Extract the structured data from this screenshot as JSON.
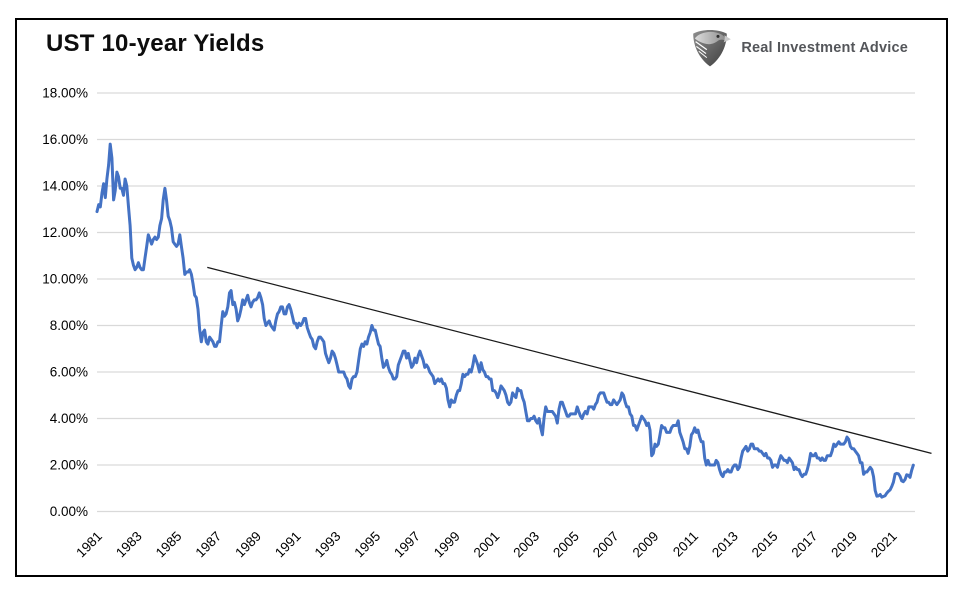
{
  "header": {
    "title": "UST 10-year Yields"
  },
  "logo": {
    "icon": "eagle-shield-icon",
    "text": "Real Investment Advice"
  },
  "chart_data": {
    "type": "line",
    "title": "UST 10-year Yields",
    "grid": "horizontal",
    "legend": "none",
    "line_color": "#4472C4",
    "grid_color": "#d9d9d9",
    "trendline_color": "#1a1a1a",
    "ylim": [
      0,
      18
    ],
    "ytick_values": [
      0,
      2,
      4,
      6,
      8,
      10,
      12,
      14,
      16,
      18
    ],
    "ytick_labels": [
      "0.00%",
      "2.00%",
      "4.00%",
      "6.00%",
      "8.00%",
      "10.00%",
      "12.00%",
      "14.00%",
      "16.00%",
      "18.00%"
    ],
    "xtick_labels": [
      "1981",
      "1983",
      "1985",
      "1987",
      "1989",
      "1991",
      "1993",
      "1995",
      "1997",
      "1999",
      "2001",
      "2003",
      "2005",
      "2007",
      "2009",
      "2011",
      "2013",
      "2015",
      "2017",
      "2019",
      "2021"
    ],
    "x_start_year": 1981,
    "x_end_year": 2022.17,
    "series": [
      {
        "name": "UST 10-year Yield (%)",
        "interval": "monthly",
        "start": "1981-01",
        "end": "2022-02",
        "values": [
          12.9,
          13.2,
          13.1,
          13.7,
          14.1,
          13.5,
          14.3,
          14.9,
          15.8,
          15.2,
          13.4,
          13.8,
          14.6,
          14.4,
          13.9,
          13.9,
          13.6,
          14.3,
          14.0,
          13.1,
          12.3,
          10.9,
          10.6,
          10.4,
          10.5,
          10.7,
          10.5,
          10.4,
          10.4,
          10.9,
          11.4,
          11.9,
          11.7,
          11.5,
          11.7,
          11.8,
          11.7,
          11.8,
          12.3,
          12.6,
          13.4,
          13.9,
          13.4,
          12.7,
          12.5,
          12.2,
          11.6,
          11.5,
          11.4,
          11.5,
          11.9,
          11.4,
          10.9,
          10.2,
          10.3,
          10.3,
          10.4,
          10.2,
          9.8,
          9.3,
          9.2,
          8.7,
          7.8,
          7.3,
          7.7,
          7.8,
          7.3,
          7.2,
          7.5,
          7.4,
          7.3,
          7.1,
          7.1,
          7.3,
          7.3,
          8.0,
          8.6,
          8.4,
          8.5,
          8.8,
          9.4,
          9.5,
          8.9,
          9.0,
          8.7,
          8.2,
          8.4,
          8.7,
          9.1,
          8.9,
          9.1,
          9.3,
          9.0,
          8.8,
          9.0,
          9.1,
          9.1,
          9.2,
          9.4,
          9.2,
          8.9,
          8.3,
          8.0,
          8.1,
          8.2,
          8.0,
          7.9,
          7.8,
          8.2,
          8.5,
          8.6,
          8.8,
          8.8,
          8.5,
          8.5,
          8.8,
          8.9,
          8.7,
          8.4,
          8.1,
          8.1,
          7.9,
          8.1,
          8.0,
          8.1,
          8.3,
          8.3,
          7.9,
          7.7,
          7.5,
          7.4,
          7.1,
          7.0,
          7.3,
          7.5,
          7.5,
          7.4,
          7.3,
          6.8,
          6.6,
          6.4,
          6.6,
          6.9,
          6.8,
          6.6,
          6.3,
          6.0,
          6.0,
          6.0,
          6.0,
          5.8,
          5.7,
          5.4,
          5.3,
          5.7,
          5.8,
          5.8,
          6.0,
          6.5,
          7.0,
          7.2,
          7.1,
          7.3,
          7.2,
          7.5,
          7.7,
          8.0,
          7.8,
          7.8,
          7.5,
          7.2,
          7.1,
          6.6,
          6.2,
          6.3,
          6.5,
          6.2,
          6.0,
          5.9,
          5.7,
          5.7,
          5.8,
          6.3,
          6.5,
          6.7,
          6.9,
          6.9,
          6.6,
          6.8,
          6.5,
          6.2,
          6.3,
          6.6,
          6.4,
          6.7,
          6.9,
          6.7,
          6.5,
          6.2,
          6.3,
          6.2,
          6.0,
          5.9,
          5.8,
          5.5,
          5.6,
          5.7,
          5.6,
          5.7,
          5.5,
          5.5,
          5.3,
          4.8,
          4.5,
          4.8,
          4.7,
          4.7,
          5.0,
          5.2,
          5.2,
          5.5,
          5.9,
          5.8,
          5.9,
          5.9,
          6.1,
          6.0,
          6.3,
          6.7,
          6.5,
          6.3,
          6.0,
          6.4,
          6.1,
          6.0,
          5.8,
          5.8,
          5.7,
          5.7,
          5.2,
          5.2,
          5.1,
          4.9,
          5.1,
          5.4,
          5.3,
          5.2,
          5.0,
          4.7,
          4.6,
          4.7,
          5.1,
          5.0,
          4.9,
          5.3,
          5.2,
          5.2,
          4.9,
          4.7,
          4.3,
          3.9,
          3.9,
          4.0,
          4.0,
          4.1,
          3.9,
          3.8,
          4.0,
          3.6,
          3.3,
          4.0,
          4.5,
          4.3,
          4.3,
          4.3,
          4.3,
          4.2,
          4.1,
          3.8,
          4.4,
          4.7,
          4.7,
          4.5,
          4.3,
          4.1,
          4.1,
          4.2,
          4.2,
          4.2,
          4.2,
          4.5,
          4.3,
          4.1,
          4.0,
          4.2,
          4.3,
          4.2,
          4.5,
          4.5,
          4.5,
          4.4,
          4.6,
          4.7,
          5.0,
          5.1,
          5.1,
          5.1,
          4.9,
          4.7,
          4.7,
          4.6,
          4.6,
          4.8,
          4.7,
          4.6,
          4.7,
          4.8,
          5.1,
          5.0,
          4.7,
          4.5,
          4.5,
          4.2,
          4.1,
          3.7,
          3.7,
          3.5,
          3.7,
          3.9,
          4.1,
          4.0,
          3.9,
          3.7,
          3.8,
          3.5,
          2.4,
          2.5,
          2.9,
          2.8,
          2.9,
          3.3,
          3.7,
          3.6,
          3.6,
          3.4,
          3.4,
          3.4,
          3.6,
          3.7,
          3.7,
          3.7,
          3.9,
          3.4,
          3.2,
          3.0,
          2.7,
          2.7,
          2.5,
          2.8,
          3.3,
          3.4,
          3.6,
          3.4,
          3.5,
          3.2,
          3.0,
          3.0,
          2.3,
          2.0,
          2.2,
          2.0,
          2.0,
          2.0,
          2.0,
          2.2,
          2.1,
          1.8,
          1.6,
          1.5,
          1.7,
          1.7,
          1.8,
          1.7,
          1.7,
          1.9,
          2.0,
          2.0,
          1.8,
          1.9,
          2.3,
          2.6,
          2.7,
          2.8,
          2.6,
          2.7,
          2.9,
          2.9,
          2.7,
          2.7,
          2.7,
          2.6,
          2.6,
          2.5,
          2.4,
          2.5,
          2.3,
          2.3,
          2.2,
          1.9,
          2.0,
          2.0,
          1.9,
          2.2,
          2.4,
          2.3,
          2.2,
          2.2,
          2.1,
          2.3,
          2.2,
          2.1,
          1.8,
          1.9,
          1.8,
          1.8,
          1.6,
          1.5,
          1.6,
          1.6,
          1.8,
          2.1,
          2.5,
          2.4,
          2.4,
          2.5,
          2.3,
          2.3,
          2.2,
          2.3,
          2.2,
          2.2,
          2.4,
          2.4,
          2.4,
          2.6,
          2.9,
          2.8,
          2.9,
          3.0,
          2.9,
          2.9,
          2.9,
          3.0,
          3.2,
          3.1,
          2.8,
          2.7,
          2.7,
          2.6,
          2.5,
          2.4,
          2.1,
          2.1,
          1.6,
          1.7,
          1.7,
          1.8,
          1.9,
          1.8,
          1.5,
          0.9,
          0.66,
          0.67,
          0.73,
          0.62,
          0.65,
          0.68,
          0.79,
          0.87,
          0.93,
          1.08,
          1.26,
          1.61,
          1.64,
          1.62,
          1.52,
          1.32,
          1.28,
          1.37,
          1.58,
          1.56,
          1.47,
          1.76,
          1.99
        ]
      }
    ],
    "trendline": {
      "x1_year": 1986.55,
      "y1": 10.5,
      "x2_year": 2023.0,
      "y2": 2.5
    }
  }
}
